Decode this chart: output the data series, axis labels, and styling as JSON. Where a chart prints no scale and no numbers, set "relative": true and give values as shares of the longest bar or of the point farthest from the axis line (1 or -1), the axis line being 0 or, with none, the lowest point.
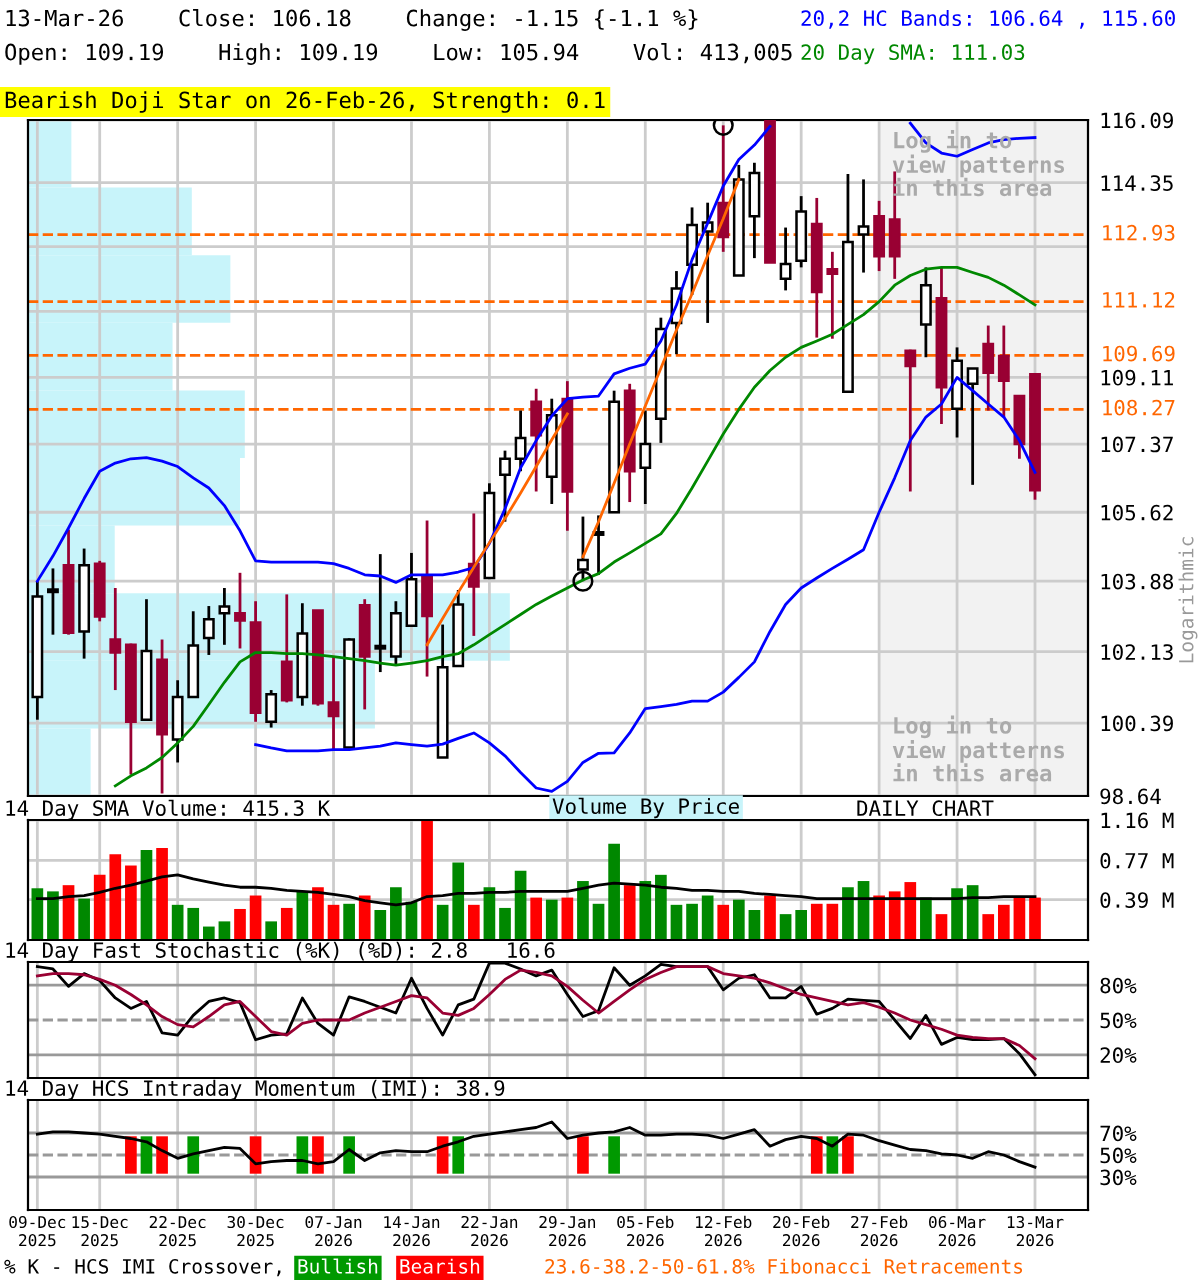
{
  "chart_data": [
    {
      "type": "candlestick",
      "title": "13-Mar-26    Close: 106.18    Change: -1.15 {-1.1 %}",
      "subtitle": "Open: 109.19    High: 109.19    Low: 105.94    Vol: 413,005",
      "categories": [
        "09-Dec\n2025",
        null,
        null,
        null,
        "15-Dec\n2025",
        null,
        null,
        null,
        null,
        "22-Dec\n2025",
        null,
        null,
        null,
        null,
        "30-Dec\n2025",
        null,
        null,
        null,
        null,
        "07-Jan\n2026",
        null,
        null,
        null,
        null,
        "14-Jan\n2026",
        null,
        null,
        null,
        null,
        "22-Jan\n2026",
        null,
        null,
        null,
        null,
        "29-Jan\n2026",
        null,
        null,
        null,
        null,
        "05-Feb\n2026",
        null,
        null,
        null,
        null,
        "12-Feb\n2026",
        null,
        null,
        null,
        null,
        "20-Feb\n2026",
        null,
        null,
        null,
        null,
        "27-Feb\n2026",
        null,
        null,
        null,
        null,
        "06-Mar\n2026",
        null,
        null,
        null,
        null,
        "13-Mar\n2026"
      ],
      "ohlc": [
        [
          101.02,
          103.88,
          100.47,
          103.5
        ],
        [
          103.61,
          104.2,
          102.55,
          103.61
        ],
        [
          104.28,
          105.18,
          102.55,
          102.6
        ],
        [
          102.63,
          104.7,
          101.96,
          104.28
        ],
        [
          104.32,
          104.39,
          102.88,
          103.0
        ],
        [
          102.43,
          103.71,
          101.19,
          102.11
        ],
        [
          102.3,
          102.33,
          99.15,
          100.42
        ],
        [
          100.47,
          103.43,
          100.47,
          102.15
        ],
        [
          101.93,
          102.43,
          98.7,
          100.12
        ],
        [
          99.99,
          101.43,
          99.44,
          101.02
        ],
        [
          101.02,
          103.13,
          101.02,
          102.28
        ],
        [
          102.47,
          103.26,
          102.05,
          102.93
        ],
        [
          103.08,
          103.71,
          102.3,
          103.25
        ],
        [
          103.08,
          104.09,
          102.21,
          102.9
        ],
        [
          102.85,
          103.38,
          100.42,
          100.64
        ],
        [
          100.42,
          101.19,
          100.28,
          101.09
        ],
        [
          101.88,
          103.55,
          100.89,
          100.94
        ],
        [
          101.02,
          103.33,
          100.81,
          102.58
        ],
        [
          103.15,
          103.15,
          100.81,
          100.87
        ],
        [
          100.89,
          102.0,
          99.75,
          100.56
        ],
        [
          99.8,
          102.46,
          99.8,
          102.43
        ],
        [
          103.28,
          103.43,
          100.72,
          102.01
        ],
        [
          102.21,
          104.56,
          101.63,
          102.21
        ],
        [
          102.01,
          103.38,
          101.8,
          103.08
        ],
        [
          102.77,
          104.59,
          102.77,
          103.93
        ],
        [
          103.99,
          105.41,
          101.52,
          103.01
        ],
        [
          99.56,
          102.8,
          99.56,
          101.75
        ],
        [
          101.78,
          103.66,
          101.78,
          103.3
        ],
        [
          104.31,
          105.59,
          102.52,
          103.75
        ],
        [
          103.96,
          106.36,
          103.96,
          106.11
        ],
        [
          106.58,
          107.2,
          105.38,
          106.99
        ],
        [
          106.99,
          108.24,
          106.67,
          107.53
        ],
        [
          108.47,
          108.81,
          106.15,
          107.6
        ],
        [
          106.53,
          108.55,
          105.83,
          108.12
        ],
        [
          108.54,
          109.01,
          105.15,
          106.15
        ],
        [
          104.17,
          105.51,
          103.88,
          104.41
        ],
        [
          105.05,
          105.54,
          104.04,
          105.05
        ],
        [
          105.62,
          108.76,
          105.62,
          108.47
        ],
        [
          108.76,
          108.94,
          105.88,
          106.67
        ],
        [
          106.76,
          108.24,
          105.83,
          107.37
        ],
        [
          108.03,
          110.69,
          107.4,
          110.39
        ],
        [
          110.55,
          111.94,
          109.72,
          111.47
        ],
        [
          112.11,
          113.67,
          111.3,
          113.19
        ],
        [
          113.01,
          113.8,
          110.55,
          113.26
        ],
        [
          113.79,
          115.94,
          112.46,
          112.86
        ],
        [
          111.82,
          114.84,
          111.82,
          114.44
        ],
        [
          113.43,
          114.9,
          112.29,
          114.62
        ],
        [
          116.09,
          116.09,
          112.17,
          112.17
        ],
        [
          111.73,
          113.12,
          111.42,
          112.13
        ],
        [
          112.22,
          113.98,
          112.04,
          113.56
        ],
        [
          113.22,
          113.93,
          110.16,
          111.38
        ],
        [
          111.99,
          112.46,
          110.13,
          111.87
        ],
        [
          108.73,
          114.59,
          108.73,
          112.73
        ],
        [
          112.93,
          114.44,
          111.9,
          113.15
        ],
        [
          113.43,
          113.85,
          111.94,
          112.34
        ],
        [
          113.34,
          114.66,
          111.73,
          112.34
        ],
        [
          109.81,
          109.84,
          106.15,
          109.41
        ],
        [
          110.51,
          112.04,
          109.64,
          111.56
        ],
        [
          111.21,
          112.04,
          107.89,
          108.85
        ],
        [
          108.29,
          109.9,
          107.54,
          109.55
        ],
        [
          108.94,
          109.34,
          106.32,
          109.34
        ],
        [
          109.99,
          110.48,
          108.24,
          109.23
        ],
        [
          109.67,
          110.48,
          108.07,
          109.02
        ],
        [
          108.62,
          108.62,
          106.99,
          107.37
        ],
        [
          109.19,
          109.19,
          105.94,
          106.18
        ]
      ],
      "colors": [
        "#ffffff",
        "#ffffff",
        "#990033",
        "#ffffff",
        "#990033",
        "#990033",
        "#990033",
        "#ffffff",
        "#990033",
        "#ffffff",
        "#ffffff",
        "#ffffff",
        "#ffffff",
        "#990033",
        "#990033",
        "#ffffff",
        "#990033",
        "#ffffff",
        "#990033",
        "#990033",
        "#ffffff",
        "#990033",
        "#ffffff",
        "#ffffff",
        "#ffffff",
        "#990033",
        "#ffffff",
        "#ffffff",
        "#990033",
        "#ffffff",
        "#ffffff",
        "#ffffff",
        "#990033",
        "#ffffff",
        "#990033",
        "#ffffff",
        "#ffffff",
        "#ffffff",
        "#990033",
        "#ffffff",
        "#ffffff",
        "#ffffff",
        "#ffffff",
        "#ffffff",
        "#990033",
        "#ffffff",
        "#ffffff",
        "#990033",
        "#ffffff",
        "#ffffff",
        "#990033",
        "#990033",
        "#ffffff",
        "#ffffff",
        "#990033",
        "#990033",
        "#990033",
        "#ffffff",
        "#990033",
        "#ffffff",
        "#ffffff",
        "#990033",
        "#990033",
        "#990033",
        "#990033"
      ],
      "series": [
        {
          "name": "20,2 HC Bands: 106.64 , 115.60",
          "type": "line",
          "color": "#0000ff",
          "values": [
            103.88,
            104.51,
            105.22,
            105.97,
            106.67,
            106.88,
            106.99,
            107.02,
            106.93,
            106.79,
            106.5,
            106.24,
            105.79,
            105.15,
            104.39,
            104.36,
            104.36,
            104.36,
            104.36,
            104.32,
            104.2,
            104.04,
            104.01,
            103.85,
            104.04,
            104.04,
            104.04,
            104.11,
            104.22,
            104.83,
            105.71,
            106.76,
            107.46,
            108.1,
            108.55,
            108.59,
            108.62,
            109.2,
            109.35,
            109.46,
            110.07,
            111.03,
            112.25,
            113.24,
            114.26,
            114.99,
            115.39,
            115.91,
            null,
            null,
            null,
            null,
            null,
            null,
            null,
            null,
            116.0,
            115.45,
            115.17,
            115.08,
            115.27,
            115.45,
            115.54,
            115.58,
            115.6
          ]
        },
        {
          "type": "line",
          "color": "#0000ff",
          "values": [
            null,
            null,
            null,
            null,
            null,
            null,
            null,
            null,
            null,
            null,
            null,
            null,
            null,
            null,
            99.87,
            99.79,
            99.72,
            99.72,
            99.72,
            99.75,
            99.75,
            99.79,
            99.83,
            99.91,
            99.87,
            99.83,
            99.88,
            100.02,
            100.15,
            99.91,
            99.6,
            99.2,
            98.83,
            98.75,
            98.99,
            99.44,
            99.66,
            99.67,
            100.15,
            100.74,
            100.79,
            100.84,
            100.92,
            100.92,
            101.14,
            101.5,
            101.88,
            102.63,
            103.3,
            103.71,
            103.96,
            104.2,
            104.43,
            104.67,
            105.62,
            106.5,
            107.46,
            108.07,
            108.41,
            109.11,
            108.76,
            108.41,
            108.07,
            107.46,
            106.64
          ]
        },
        {
          "name": "20 Day SMA: 111.03",
          "type": "line",
          "color": "#008800",
          "values": [
            null,
            null,
            null,
            null,
            null,
            98.88,
            99.12,
            99.31,
            99.56,
            99.91,
            100.31,
            100.84,
            101.38,
            101.88,
            102.11,
            102.11,
            102.08,
            102.08,
            102.05,
            102.01,
            101.96,
            101.91,
            101.85,
            101.8,
            101.85,
            101.91,
            102.01,
            102.08,
            102.3,
            102.55,
            102.8,
            103.05,
            103.3,
            103.51,
            103.71,
            103.91,
            104.07,
            104.36,
            104.59,
            104.83,
            105.07,
            105.59,
            106.24,
            106.93,
            107.63,
            108.27,
            108.85,
            109.29,
            109.64,
            109.9,
            110.07,
            110.25,
            110.51,
            110.77,
            111.12,
            111.56,
            111.82,
            111.99,
            112.04,
            112.04,
            111.9,
            111.77,
            111.56,
            111.3,
            111.03
          ]
        },
        {
          "type": "line",
          "color": "#ff6600",
          "values": [
            null,
            null,
            null,
            null,
            null,
            null,
            null,
            null,
            null,
            null,
            null,
            null,
            null,
            null,
            null,
            null,
            null,
            null,
            null,
            null,
            null,
            null,
            null,
            null,
            null,
            102.3,
            102.95,
            103.6,
            104.23,
            104.85,
            105.46,
            106.11,
            106.79,
            107.48,
            108.15,
            null,
            null,
            null,
            null,
            null,
            null,
            null,
            null,
            null,
            null,
            null,
            null,
            null,
            null,
            null,
            null,
            null,
            null,
            null,
            null,
            null,
            null,
            null,
            null,
            null,
            null,
            null,
            null,
            null,
            null
          ]
        },
        {
          "type": "line",
          "color": "#ff6600",
          "values": [
            null,
            null,
            null,
            null,
            null,
            null,
            null,
            null,
            null,
            null,
            null,
            null,
            null,
            null,
            null,
            null,
            null,
            null,
            null,
            null,
            null,
            null,
            null,
            null,
            null,
            null,
            null,
            null,
            null,
            null,
            null,
            null,
            null,
            null,
            null,
            104.49,
            105.38,
            106.36,
            107.37,
            108.36,
            109.35,
            110.36,
            111.33,
            112.36,
            113.36,
            114.44,
            null,
            null,
            null,
            null,
            null,
            null,
            null,
            null,
            null,
            null,
            null,
            null,
            null,
            null,
            null,
            null,
            null,
            null,
            null
          ]
        },
        {
          "type": "scatter",
          "color": "#000000",
          "marker": "circle",
          "values": [
            null,
            null,
            null,
            null,
            null,
            null,
            null,
            null,
            null,
            null,
            null,
            null,
            null,
            null,
            null,
            null,
            null,
            null,
            null,
            null,
            null,
            null,
            null,
            null,
            null,
            null,
            null,
            null,
            null,
            null,
            null,
            null,
            null,
            null,
            null,
            103.88,
            null,
            null,
            null,
            null,
            null,
            null,
            null,
            null,
            115.94,
            null,
            null,
            null,
            null,
            null,
            null,
            null,
            null,
            null,
            null,
            null,
            null,
            null,
            null,
            null,
            null,
            null,
            null,
            null,
            null
          ]
        }
      ],
      "log": true,
      "ylim": [
        98.64,
        116.09
      ],
      "yticks": [
        116.09,
        114.35,
        {
          "value": 112.6,
          "label": null
        },
        {
          "value": 110.86,
          "label": null
        },
        109.11,
        107.37,
        105.62,
        103.88,
        102.13,
        100.39,
        98.64
      ],
      "grid": true,
      "legend": "top right",
      "tick_labels": "y",
      "ref_lines": [
        {
          "axis": "y",
          "value": 112.93,
          "label": "112.93",
          "color": "#ff6600",
          "line_style": "dashed"
        },
        {
          "axis": "y",
          "value": 111.12,
          "label": "111.12",
          "color": "#ff6600",
          "line_style": "dashed"
        },
        {
          "axis": "y",
          "value": 109.69,
          "label": "109.69",
          "color": "#ff6600",
          "line_style": "dashed"
        },
        {
          "axis": "y",
          "value": 108.27,
          "label": "108.27",
          "color": "#ff6600",
          "line_style": "dashed"
        }
      ],
      "bands": [
        {
          "axis": "x",
          "from": "27-Feb\n2026",
          "to": "13-Mar\n2026",
          "color": "#f2f2f2"
        }
      ],
      "annotations": [
        "Bearish Doji Star on 26-Feb-26, Strength: 0.1",
        "Log in to\nview patterns\nin this area",
        "Log in to\nview patterns\nin this area",
        "DAILY CHART",
        "Logarithmic",
        "23.6-38.2-50-61.8% Fibonacci Retracements",
        "Volume By Price"
      ]
    },
    {
      "type": "bar",
      "orientation": "horizontal",
      "relative": true,
      "categories": [
        null,
        null,
        null,
        null,
        null,
        null,
        null,
        null,
        null,
        null
      ],
      "values": [
        0.09,
        0.34,
        0.42,
        0.3,
        0.45,
        0.44,
        0.18,
        1,
        0.72,
        0.13
      ],
      "color": "#c8f4fa"
    },
    {
      "type": "bar",
      "title": "14 Day SMA Volume: 415.3 K",
      "categories": [
        "09-Dec\n2025",
        null,
        null,
        null,
        "15-Dec\n2025",
        null,
        null,
        null,
        null,
        "22-Dec\n2025",
        null,
        null,
        null,
        null,
        "30-Dec\n2025",
        null,
        null,
        null,
        null,
        "07-Jan\n2026",
        null,
        null,
        null,
        null,
        "14-Jan\n2026",
        null,
        null,
        null,
        null,
        "22-Jan\n2026",
        null,
        null,
        null,
        null,
        "29-Jan\n2026",
        null,
        null,
        null,
        null,
        "05-Feb\n2026",
        null,
        null,
        null,
        null,
        "12-Feb\n2026",
        null,
        null,
        null,
        null,
        "20-Feb\n2026",
        null,
        null,
        null,
        null,
        "27-Feb\n2026",
        null,
        null,
        null,
        null,
        "06-Mar\n2026",
        null,
        null,
        null,
        null,
        "13-Mar\n2026"
      ],
      "series": [
        {
          "type": "bar",
          "values": [
            0.5,
            0.47,
            0.53,
            0.4,
            0.63,
            0.83,
            0.72,
            0.87,
            0.89,
            0.34,
            0.31,
            0.13,
            0.18,
            0.3,
            0.43,
            0.18,
            0.31,
            0.47,
            0.51,
            0.34,
            0.35,
            0.43,
            0.29,
            0.51,
            0.37,
            1.16,
            0.34,
            0.75,
            0.34,
            0.51,
            0.31,
            0.67,
            0.41,
            0.39,
            0.41,
            0.57,
            0.35,
            0.93,
            0.53,
            0.57,
            0.63,
            0.34,
            0.35,
            0.43,
            0.34,
            0.39,
            0.29,
            0.43,
            0.25,
            0.29,
            0.35,
            0.35,
            0.51,
            0.57,
            0.43,
            0.47,
            0.56,
            0.41,
            0.25,
            0.5,
            0.53,
            0.25,
            0.34,
            0.41,
            0.41
          ],
          "colors": [
            "#008800",
            "#008800",
            "#ff0000",
            "#008800",
            "#ff0000",
            "#ff0000",
            "#ff0000",
            "#008800",
            "#ff0000",
            "#008800",
            "#008800",
            "#008800",
            "#008800",
            "#ff0000",
            "#ff0000",
            "#008800",
            "#ff0000",
            "#008800",
            "#ff0000",
            "#ff0000",
            "#008800",
            "#ff0000",
            "#008800",
            "#008800",
            "#008800",
            "#ff0000",
            "#008800",
            "#008800",
            "#ff0000",
            "#008800",
            "#008800",
            "#008800",
            "#ff0000",
            "#008800",
            "#ff0000",
            "#008800",
            "#008800",
            "#008800",
            "#ff0000",
            "#008800",
            "#008800",
            "#008800",
            "#008800",
            "#008800",
            "#ff0000",
            "#008800",
            "#008800",
            "#ff0000",
            "#008800",
            "#008800",
            "#ff0000",
            "#ff0000",
            "#008800",
            "#008800",
            "#ff0000",
            "#ff0000",
            "#ff0000",
            "#008800",
            "#ff0000",
            "#008800",
            "#008800",
            "#ff0000",
            "#ff0000",
            "#ff0000",
            "#ff0000"
          ]
        },
        {
          "type": "line",
          "color": "#000000",
          "values": [
            0.4,
            0.4,
            0.42,
            0.43,
            0.46,
            0.5,
            0.53,
            0.57,
            0.61,
            0.63,
            0.59,
            0.56,
            0.53,
            0.51,
            0.51,
            0.5,
            0.48,
            0.47,
            0.46,
            0.44,
            0.42,
            0.38,
            0.36,
            0.34,
            0.36,
            0.42,
            0.43,
            0.45,
            0.45,
            0.46,
            0.46,
            0.47,
            0.47,
            0.47,
            0.47,
            0.5,
            0.53,
            0.55,
            0.54,
            0.53,
            0.51,
            0.5,
            0.48,
            0.48,
            0.47,
            0.47,
            0.45,
            0.44,
            0.43,
            0.42,
            0.4,
            0.4,
            0.4,
            0.4,
            0.4,
            0.4,
            0.4,
            0.4,
            0.4,
            0.4,
            0.41,
            0.41,
            0.42,
            0.42,
            0.42
          ]
        }
      ],
      "ylim": [
        0,
        1.16
      ],
      "yticks": [
        {
          "value": 0.39,
          "label": "0.39 M"
        },
        {
          "value": 0.77,
          "label": "0.77 M"
        },
        {
          "value": 1.16,
          "label": "1.16 M"
        }
      ],
      "grid": true,
      "tick_labels": "y"
    },
    {
      "type": "line",
      "title": "14 Day Fast Stochastic (%K) (%D): 2.8   16.6",
      "categories": [
        "09-Dec\n2025",
        null,
        null,
        null,
        "15-Dec\n2025",
        null,
        null,
        null,
        null,
        "22-Dec\n2025",
        null,
        null,
        null,
        null,
        "30-Dec\n2025",
        null,
        null,
        null,
        null,
        "07-Jan\n2026",
        null,
        null,
        null,
        null,
        "14-Jan\n2026",
        null,
        null,
        null,
        null,
        "22-Jan\n2026",
        null,
        null,
        null,
        null,
        "29-Jan\n2026",
        null,
        null,
        null,
        null,
        "05-Feb\n2026",
        null,
        null,
        null,
        null,
        "12-Feb\n2026",
        null,
        null,
        null,
        null,
        "20-Feb\n2026",
        null,
        null,
        null,
        null,
        "27-Feb\n2026",
        null,
        null,
        null,
        null,
        "06-Mar\n2026",
        null,
        null,
        null,
        null,
        "13-Mar\n2026"
      ],
      "series": [
        {
          "color": "#000000",
          "values": [
            96,
            94,
            79,
            90,
            84,
            69,
            60,
            66,
            39,
            37,
            54,
            66,
            69,
            65,
            33,
            37,
            38,
            69,
            47,
            37,
            70,
            66,
            61,
            56,
            86,
            60,
            37,
            63,
            68,
            99,
            99,
            94,
            88,
            93,
            72,
            53,
            58,
            95,
            80,
            88,
            98,
            96,
            96,
            96,
            76,
            86,
            89,
            69,
            69,
            79,
            55,
            60,
            68,
            67,
            66,
            50,
            34,
            54,
            29,
            35,
            33,
            33,
            34,
            21,
            2.8
          ]
        },
        {
          "color": "#990033",
          "values": [
            88,
            90,
            90,
            89,
            85,
            80,
            72,
            63,
            53,
            46,
            44,
            53,
            63,
            66,
            53,
            40,
            37,
            47,
            50,
            50,
            50,
            56,
            61,
            66,
            71,
            69,
            56,
            54,
            60,
            72,
            85,
            93,
            91,
            88,
            79,
            67,
            56,
            66,
            76,
            85,
            91,
            96,
            96,
            96,
            90,
            88,
            86,
            82,
            77,
            72,
            69,
            66,
            63,
            65,
            61,
            56,
            50,
            46,
            42,
            37,
            35,
            34,
            34,
            28,
            16.6
          ]
        }
      ],
      "ylim": [
        0,
        100
      ],
      "yticks": [
        {
          "value": 20,
          "label": "20%"
        },
        {
          "value": 50,
          "label": "50%"
        },
        {
          "value": 80,
          "label": "80%"
        }
      ],
      "grid": "x",
      "tick_labels": "y",
      "ref_lines": [
        {
          "axis": "y",
          "value": 80,
          "color": "#999999"
        },
        {
          "axis": "y",
          "value": 50,
          "color": "#999999",
          "line_style": "dashed"
        },
        {
          "axis": "y",
          "value": 20,
          "color": "#999999"
        }
      ]
    },
    {
      "type": "line",
      "title": "14 Day HCS Intraday Momentum (IMI): 38.9",
      "categories": [
        "09-Dec\n2025",
        null,
        null,
        null,
        "15-Dec\n2025",
        null,
        null,
        null,
        null,
        "22-Dec\n2025",
        null,
        null,
        null,
        null,
        "30-Dec\n2025",
        null,
        null,
        null,
        null,
        "07-Jan\n2026",
        null,
        null,
        null,
        null,
        "14-Jan\n2026",
        null,
        null,
        null,
        null,
        "22-Jan\n2026",
        null,
        null,
        null,
        null,
        "29-Jan\n2026",
        null,
        null,
        null,
        null,
        "05-Feb\n2026",
        null,
        null,
        null,
        null,
        "12-Feb\n2026",
        null,
        null,
        null,
        null,
        "20-Feb\n2026",
        null,
        null,
        null,
        null,
        "27-Feb\n2026",
        null,
        null,
        null,
        null,
        "06-Mar\n2026",
        null,
        null,
        null,
        null,
        "13-Mar\n2026"
      ],
      "series": [
        {
          "name": "Bullish",
          "type": "bar",
          "color": "#009900",
          "values": [
            null,
            null,
            null,
            null,
            null,
            null,
            null,
            34,
            null,
            null,
            34,
            null,
            null,
            null,
            null,
            null,
            null,
            34,
            null,
            null,
            34,
            null,
            null,
            null,
            null,
            null,
            null,
            34,
            null,
            null,
            null,
            null,
            null,
            null,
            null,
            null,
            null,
            34,
            null,
            null,
            null,
            null,
            null,
            null,
            null,
            null,
            null,
            null,
            null,
            null,
            null,
            34,
            null,
            null,
            null,
            null,
            null,
            null,
            null,
            null,
            null,
            null,
            null,
            null,
            null
          ],
          "base": [
            null,
            null,
            null,
            null,
            null,
            null,
            null,
            33,
            null,
            null,
            33,
            null,
            null,
            null,
            null,
            null,
            null,
            33,
            null,
            null,
            33,
            null,
            null,
            null,
            null,
            null,
            null,
            33,
            null,
            null,
            null,
            null,
            null,
            null,
            null,
            null,
            null,
            33,
            null,
            null,
            null,
            null,
            null,
            null,
            null,
            null,
            null,
            null,
            null,
            null,
            null,
            33,
            null,
            null,
            null,
            null,
            null,
            null,
            null,
            null,
            null,
            null,
            null,
            null,
            null
          ]
        },
        {
          "name": "Bearish",
          "type": "bar",
          "color": "#ff0000",
          "values": [
            null,
            null,
            null,
            null,
            null,
            null,
            34,
            null,
            34,
            null,
            null,
            null,
            null,
            null,
            34,
            null,
            null,
            null,
            34,
            null,
            null,
            null,
            null,
            null,
            null,
            null,
            34,
            null,
            null,
            null,
            null,
            null,
            null,
            null,
            null,
            34,
            null,
            null,
            null,
            null,
            null,
            null,
            null,
            null,
            null,
            null,
            null,
            null,
            null,
            null,
            34,
            null,
            34,
            null,
            null,
            null,
            null,
            null,
            null,
            null,
            null,
            null,
            null,
            null,
            null
          ],
          "base": [
            null,
            null,
            null,
            null,
            null,
            null,
            33,
            null,
            33,
            null,
            null,
            null,
            null,
            null,
            33,
            null,
            null,
            null,
            33,
            null,
            null,
            null,
            null,
            null,
            null,
            null,
            33,
            null,
            null,
            null,
            null,
            null,
            null,
            null,
            null,
            33,
            null,
            null,
            null,
            null,
            null,
            null,
            null,
            null,
            null,
            null,
            null,
            null,
            null,
            null,
            33,
            null,
            33,
            null,
            null,
            null,
            null,
            null,
            null,
            null,
            null,
            null,
            null,
            null,
            null
          ]
        },
        {
          "type": "line",
          "color": "#000000",
          "values": [
            69,
            71,
            71,
            70,
            69,
            67,
            65,
            62,
            54,
            47,
            51,
            54,
            57,
            56,
            42,
            44,
            45,
            45,
            42,
            44,
            55,
            45,
            52,
            54,
            53,
            53,
            58,
            62,
            67,
            69,
            71,
            73,
            75,
            80,
            65,
            68,
            70,
            71,
            75,
            68,
            68,
            69,
            69,
            68,
            65,
            69,
            73,
            58,
            64,
            67,
            65,
            58,
            69,
            68,
            63,
            59,
            55,
            54,
            51,
            50,
            47,
            53,
            50,
            44,
            38.9
          ]
        }
      ],
      "ylim": [
        0,
        100
      ],
      "yticks": [
        {
          "value": 30,
          "label": "30%"
        },
        {
          "value": 50,
          "label": "50%"
        },
        {
          "value": 70,
          "label": "70%"
        }
      ],
      "grid": "x",
      "ref_lines": [
        {
          "axis": "y",
          "value": 70,
          "color": "#999999"
        },
        {
          "axis": "y",
          "value": 50,
          "color": "#999999",
          "line_style": "dashed"
        },
        {
          "axis": "y",
          "value": 30,
          "color": "#999999"
        }
      ],
      "legend": "bottom",
      "legend_title": "% K - HCS IMI Crossover,"
    }
  ]
}
